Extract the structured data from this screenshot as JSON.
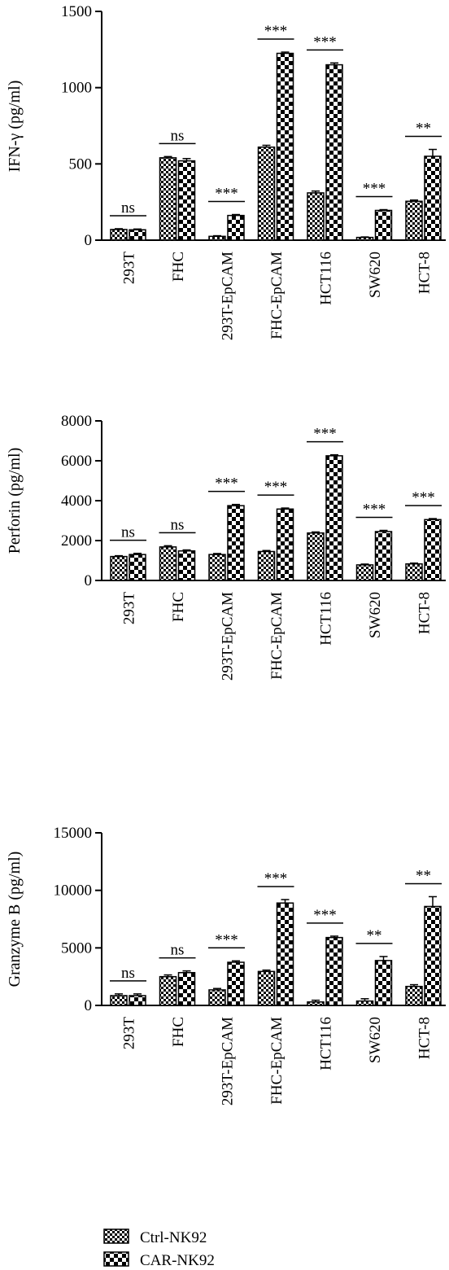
{
  "figure": {
    "legend": [
      {
        "label": "Ctrl-NK92",
        "pattern": "small-checker"
      },
      {
        "label": "CAR-NK92",
        "pattern": "large-checker"
      }
    ]
  },
  "chart_data": [
    {
      "type": "bar",
      "ylabel": "IFN-γ (pg/ml)",
      "ylim": [
        0,
        1500
      ],
      "yticks": [
        0,
        500,
        1000,
        1500
      ],
      "categories": [
        "293T",
        "FHC",
        "293T-EpCAM",
        "FHC-EpCAM",
        "HCT116",
        "SW620",
        "HCT-8"
      ],
      "series": [
        {
          "name": "Ctrl-NK92",
          "values": [
            70,
            540,
            25,
            610,
            310,
            18,
            255
          ],
          "errors": [
            5,
            8,
            4,
            12,
            12,
            3,
            8
          ]
        },
        {
          "name": "CAR-NK92",
          "values": [
            68,
            520,
            162,
            1225,
            1150,
            195,
            550
          ],
          "errors": [
            5,
            15,
            6,
            8,
            12,
            5,
            45
          ]
        }
      ],
      "significance": [
        "ns",
        "ns",
        "***",
        "***",
        "***",
        "***",
        "**"
      ]
    },
    {
      "type": "bar",
      "ylabel": "Perforin (pg/ml)",
      "ylim": [
        0,
        8000
      ],
      "yticks": [
        0,
        2000,
        4000,
        6000,
        8000
      ],
      "categories": [
        "293T",
        "FHC",
        "293T-EpCAM",
        "FHC-EpCAM",
        "HCT116",
        "SW620",
        "HCT-8"
      ],
      "series": [
        {
          "name": "Ctrl-NK92",
          "values": [
            1200,
            1680,
            1300,
            1450,
            2380,
            780,
            830
          ],
          "errors": [
            40,
            60,
            50,
            50,
            50,
            40,
            40
          ]
        },
        {
          "name": "CAR-NK92",
          "values": [
            1300,
            1480,
            3750,
            3580,
            6250,
            2450,
            3050
          ],
          "errors": [
            60,
            50,
            60,
            50,
            50,
            60,
            50
          ]
        }
      ],
      "significance": [
        "ns",
        "ns",
        "***",
        "***",
        "***",
        "***",
        "***"
      ]
    },
    {
      "type": "bar",
      "ylabel": "Granzyme B (pg/ml)",
      "ylim": [
        0,
        15000
      ],
      "yticks": [
        0,
        5000,
        10000,
        15000
      ],
      "categories": [
        "293T",
        "FHC",
        "293T-EpCAM",
        "FHC-EpCAM",
        "HCT116",
        "SW620",
        "HCT-8"
      ],
      "series": [
        {
          "name": "Ctrl-NK92",
          "values": [
            850,
            2500,
            1350,
            2950,
            300,
            380,
            1650
          ],
          "errors": [
            150,
            150,
            120,
            120,
            150,
            200,
            150
          ]
        },
        {
          "name": "CAR-NK92",
          "values": [
            850,
            2850,
            3750,
            8900,
            5900,
            3900,
            8600
          ],
          "errors": [
            150,
            150,
            120,
            300,
            120,
            350,
            850
          ]
        }
      ],
      "significance": [
        "ns",
        "ns",
        "***",
        "***",
        "***",
        "**",
        "**"
      ]
    }
  ]
}
